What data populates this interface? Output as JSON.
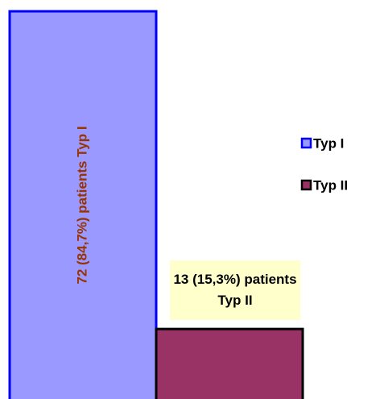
{
  "chart_data": {
    "type": "bar",
    "series": [
      {
        "name": "Typ I",
        "color": "#9999ff",
        "edgecolor": "#0000ff",
        "values": [
          72
        ],
        "value_labels": [
          "72 (84,7%) patients Typ I"
        ]
      },
      {
        "name": "Typ II",
        "color": "#993366",
        "edgecolor": "#000000",
        "values": [
          13
        ],
        "value_labels": [
          "13 (15,3%) patients Typ II"
        ]
      }
    ],
    "ylim": [
      0,
      72
    ],
    "legend": "right"
  }
}
